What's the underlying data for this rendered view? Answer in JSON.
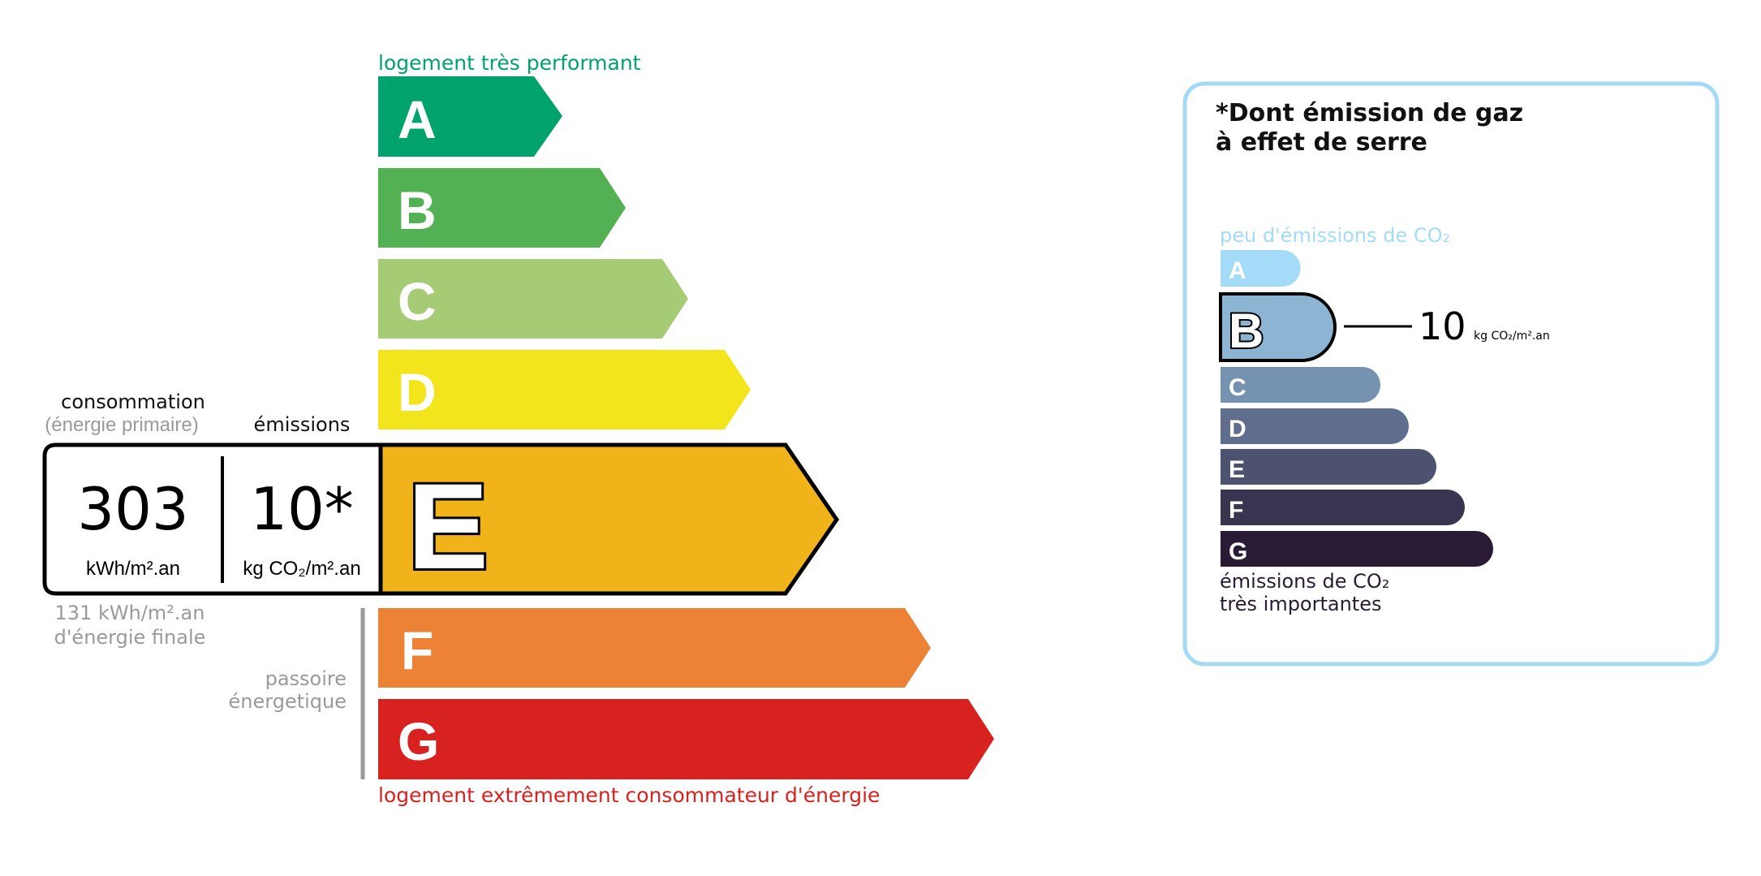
{
  "energy_scale": {
    "top_label": "logement très performant",
    "bottom_label": "logement extrêmement consommateur d'énergie",
    "classes": [
      {
        "letter": "A",
        "color": "#00a36c"
      },
      {
        "letter": "B",
        "color": "#52b153"
      },
      {
        "letter": "C",
        "color": "#a5cc74"
      },
      {
        "letter": "D",
        "color": "#f2e51c"
      },
      {
        "letter": "E",
        "color": "#f0b41a"
      },
      {
        "letter": "F",
        "color": "#eb8235"
      },
      {
        "letter": "G",
        "color": "#d7221f"
      }
    ],
    "current_class": "E",
    "passoire_label_1": "passoire",
    "passoire_label_2": "énergetique"
  },
  "consumption": {
    "header": "consommation",
    "subheader": "(énergie primaire)",
    "value": "303",
    "unit": "kWh/m².an",
    "final_value": "131 kWh/m².an",
    "final_label": "d'énergie finale"
  },
  "emissions": {
    "header": "émissions",
    "value": "10*",
    "unit": "kg CO₂/m².an"
  },
  "ghg_panel": {
    "title_line1": "*Dont émission de gaz",
    "title_line2": "à effet de serre",
    "top_label": "peu d'émissions de CO₂",
    "bottom_label_1": "émissions de CO₂",
    "bottom_label_2": "très importantes",
    "border_color": "#a5daf5",
    "classes": [
      {
        "letter": "A",
        "color": "#a4dbf8"
      },
      {
        "letter": "B",
        "color": "#8cb4d3"
      },
      {
        "letter": "C",
        "color": "#7692b1"
      },
      {
        "letter": "D",
        "color": "#5f6e8f"
      },
      {
        "letter": "E",
        "color": "#4d5271"
      },
      {
        "letter": "F",
        "color": "#393551"
      },
      {
        "letter": "G",
        "color": "#291b35"
      }
    ],
    "current_class": "B",
    "value": "10",
    "unit": "kg CO₂/m².an"
  }
}
